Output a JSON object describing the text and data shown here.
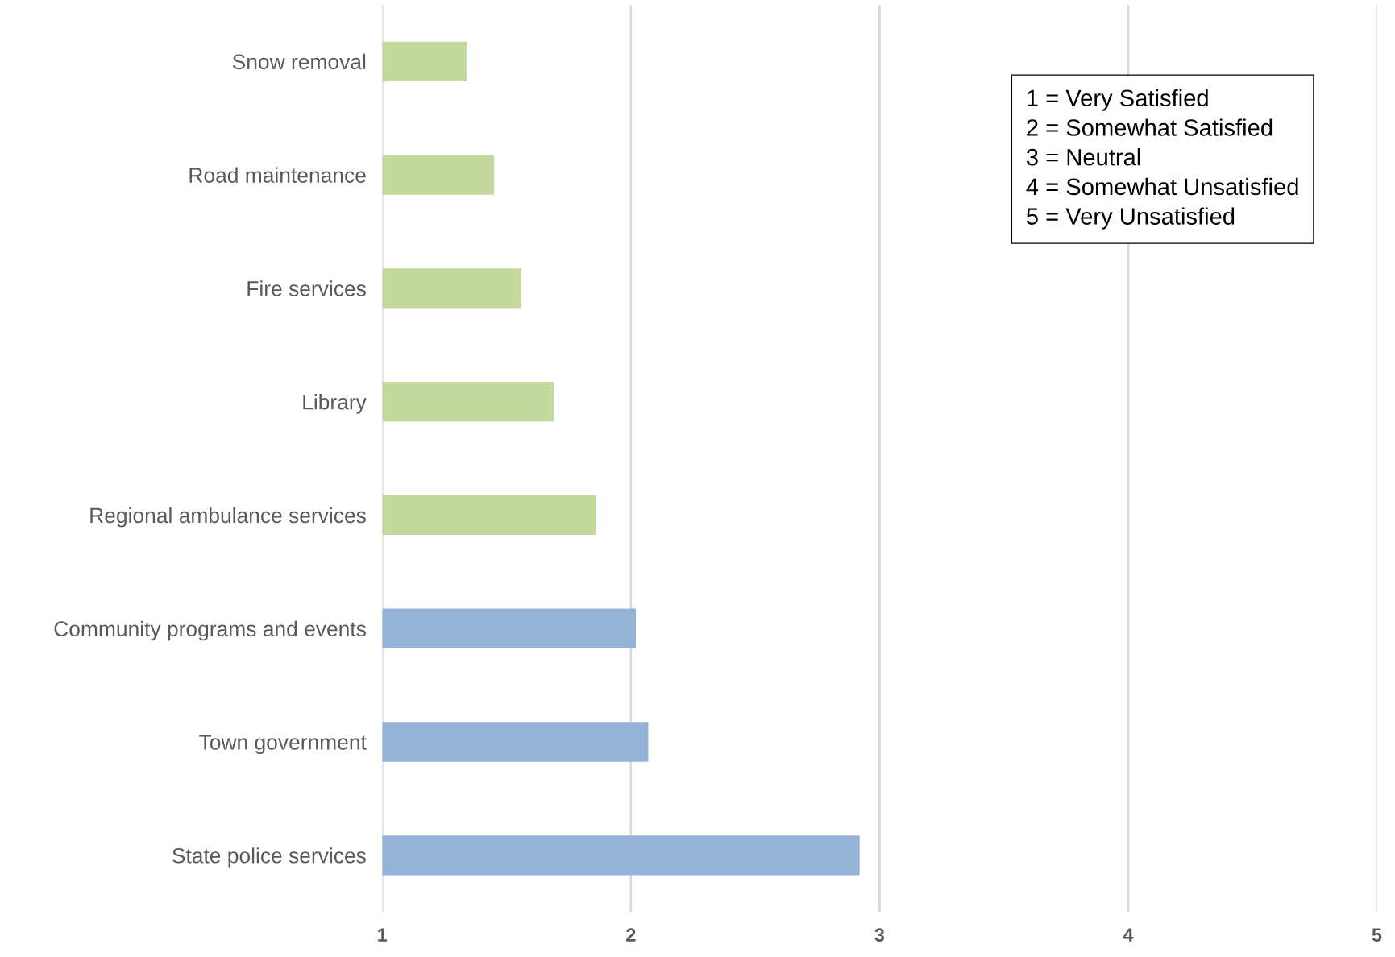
{
  "chart_data": {
    "type": "bar",
    "orientation": "horizontal",
    "categories": [
      "Snow removal",
      "Road maintenance",
      "Fire services",
      "Library",
      "Regional ambulance services",
      "Community programs and events",
      "Town government",
      "State police services"
    ],
    "values": [
      1.34,
      1.45,
      1.56,
      1.69,
      1.86,
      2.02,
      2.07,
      2.92
    ],
    "colors": [
      "#c5d89d",
      "#c5d89d",
      "#c5d89d",
      "#c5d89d",
      "#c5d89d",
      "#95b3d7",
      "#95b3d7",
      "#95b3d7"
    ],
    "xlim": [
      1,
      5
    ],
    "xticks": [
      1,
      2,
      3,
      4,
      5
    ],
    "grid": "x",
    "annotations": [
      "1 = Very Satisfied",
      "2 = Somewhat Satisfied",
      "3 = Neutral",
      "4 = Somewhat Unsatisfied",
      "5 = Very Unsatisfied"
    ]
  }
}
